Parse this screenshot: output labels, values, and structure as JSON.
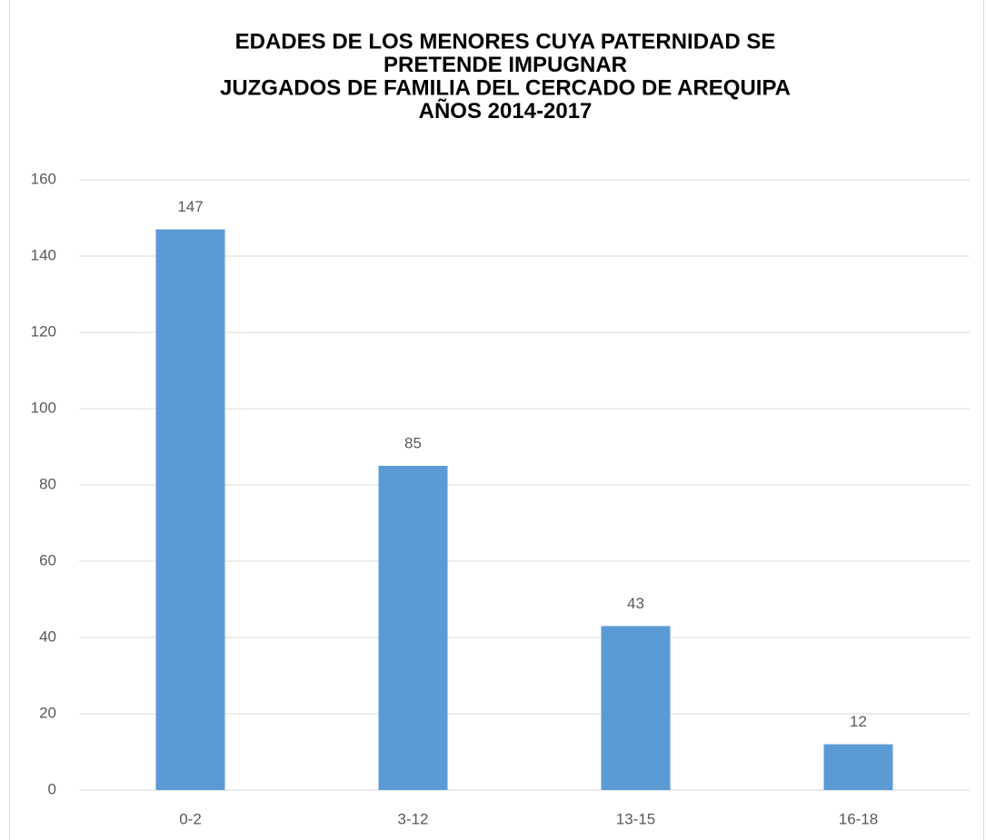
{
  "chart_data": {
    "type": "bar",
    "title": [
      "EDADES DE LOS MENORES CUYA PATERNIDAD SE",
      "PRETENDE IMPUGNAR",
      "JUZGADOS DE FAMILIA DEL CERCADO DE AREQUIPA",
      "AÑOS 2014-2017"
    ],
    "categories": [
      "0-2",
      "3-12",
      "13-15",
      "16-18"
    ],
    "values": [
      147,
      85,
      43,
      12
    ],
    "color": "#5b9bd5",
    "ylim": [
      0,
      160
    ],
    "yticks": [
      0,
      20,
      40,
      60,
      80,
      100,
      120,
      140,
      160
    ],
    "grid": true
  }
}
